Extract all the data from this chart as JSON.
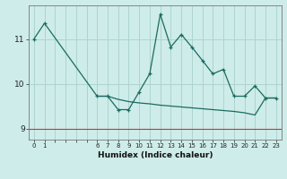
{
  "xlabel": "Humidex (Indice chaleur)",
  "background_color": "#ceecea",
  "grid_color": "#aed4d0",
  "line_color": "#1a6b60",
  "ylim": [
    8.75,
    11.75
  ],
  "xlim": [
    -0.5,
    23.5
  ],
  "yticks": [
    9,
    10,
    11
  ],
  "xtick_positions": [
    0,
    1,
    2,
    3,
    4,
    5,
    6,
    7,
    8,
    9,
    10,
    11,
    12,
    13,
    14,
    15,
    16,
    17,
    18,
    19,
    20,
    21,
    22,
    23
  ],
  "xtick_labels": [
    "0",
    "1",
    "",
    "",
    "",
    "",
    "6",
    "7",
    "8",
    "9",
    "10",
    "11",
    "12",
    "13",
    "14",
    "15",
    "16",
    "17",
    "18",
    "19",
    "20",
    "21",
    "22",
    "23"
  ],
  "main_x": [
    0,
    1,
    6,
    7,
    8,
    9,
    10,
    11,
    12,
    13,
    14,
    15,
    16,
    17,
    18,
    19,
    20,
    21,
    22,
    23
  ],
  "main_y": [
    11.0,
    11.35,
    9.72,
    9.72,
    9.42,
    9.42,
    9.82,
    10.22,
    11.55,
    10.82,
    11.1,
    10.82,
    10.52,
    10.22,
    10.32,
    9.72,
    9.72,
    9.95,
    9.68,
    9.68
  ],
  "trend_x": [
    6,
    7,
    8,
    9,
    10,
    11,
    12,
    13,
    14,
    15,
    16,
    17,
    18,
    19,
    20,
    21,
    22,
    23
  ],
  "trend_y": [
    9.72,
    9.72,
    9.65,
    9.6,
    9.57,
    9.55,
    9.52,
    9.5,
    9.48,
    9.46,
    9.44,
    9.42,
    9.4,
    9.38,
    9.35,
    9.3,
    9.68,
    9.68
  ],
  "hline_y": 9.0,
  "hline_color": "#cc3333"
}
